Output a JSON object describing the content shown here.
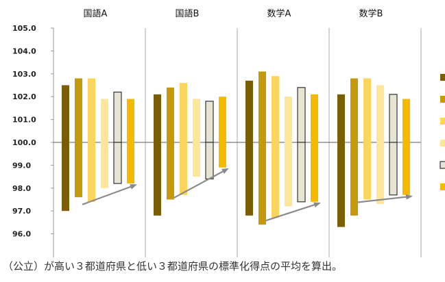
{
  "chart_data": {
    "type": "bar",
    "panels": [
      "国語A",
      "国語B",
      "数学A",
      "数学B"
    ],
    "ylim": [
      95.0,
      105.0
    ],
    "yticks": [
      "105.0",
      "104.0",
      "103.0",
      "102.0",
      "101.0",
      "100.0",
      "99.0",
      "98.0",
      "97.0",
      "96.0"
    ],
    "baseline": 100.0,
    "series_colors": [
      "#7a5e05",
      "#c49a0c",
      "#fcd55f",
      "#fde59a",
      "#e5e5d2",
      "#f5ba00"
    ],
    "series_outline": [
      null,
      null,
      null,
      null,
      "#333333",
      null
    ],
    "high": [
      [
        102.5,
        102.8,
        102.8,
        101.9,
        102.2,
        101.9
      ],
      [
        102.1,
        102.4,
        102.6,
        101.9,
        101.8,
        102.0
      ],
      [
        102.7,
        103.1,
        102.9,
        102.0,
        102.4,
        102.1
      ],
      [
        102.1,
        102.8,
        102.8,
        102.5,
        102.1,
        101.9
      ]
    ],
    "low": [
      [
        97.0,
        97.6,
        97.4,
        98.0,
        98.2,
        98.2
      ],
      [
        96.8,
        97.5,
        97.7,
        98.5,
        98.4,
        98.9
      ],
      [
        96.8,
        96.4,
        96.7,
        97.2,
        97.4,
        97.4
      ],
      [
        96.3,
        96.8,
        97.5,
        97.3,
        97.7,
        97.7
      ]
    ],
    "caption": "（公立）が高い３都道府県と低い３都道府県の標準化得点の平均を算出。"
  }
}
